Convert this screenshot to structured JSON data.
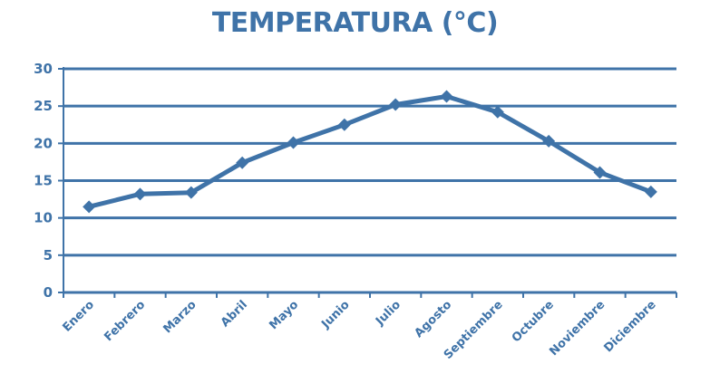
{
  "chart_data": {
    "type": "line",
    "title": "TEMPERATURA (°C)",
    "categories": [
      "Enero",
      "Febrero",
      "Marzo",
      "Abril",
      "Mayo",
      "Junio",
      "Julio",
      "Agosto",
      "Septiembre",
      "Octubre",
      "Noviembre",
      "Diciembre"
    ],
    "series": [
      {
        "values": [
          11.5,
          13.2,
          13.4,
          17.4,
          20.1,
          22.5,
          25.2,
          26.3,
          24.2,
          20.3,
          16.1,
          13.5
        ],
        "color": "#3f73a8"
      }
    ],
    "ylim": [
      0,
      30
    ],
    "yticks": [
      "0",
      "5",
      "10",
      "15",
      "20",
      "25",
      "30"
    ],
    "grid": true,
    "xlabel": "",
    "ylabel": ""
  },
  "colors": {
    "axis": "#3f73a8",
    "grid": "#3f73a8",
    "line": "#3f73a8",
    "text": "#3f73a8"
  }
}
